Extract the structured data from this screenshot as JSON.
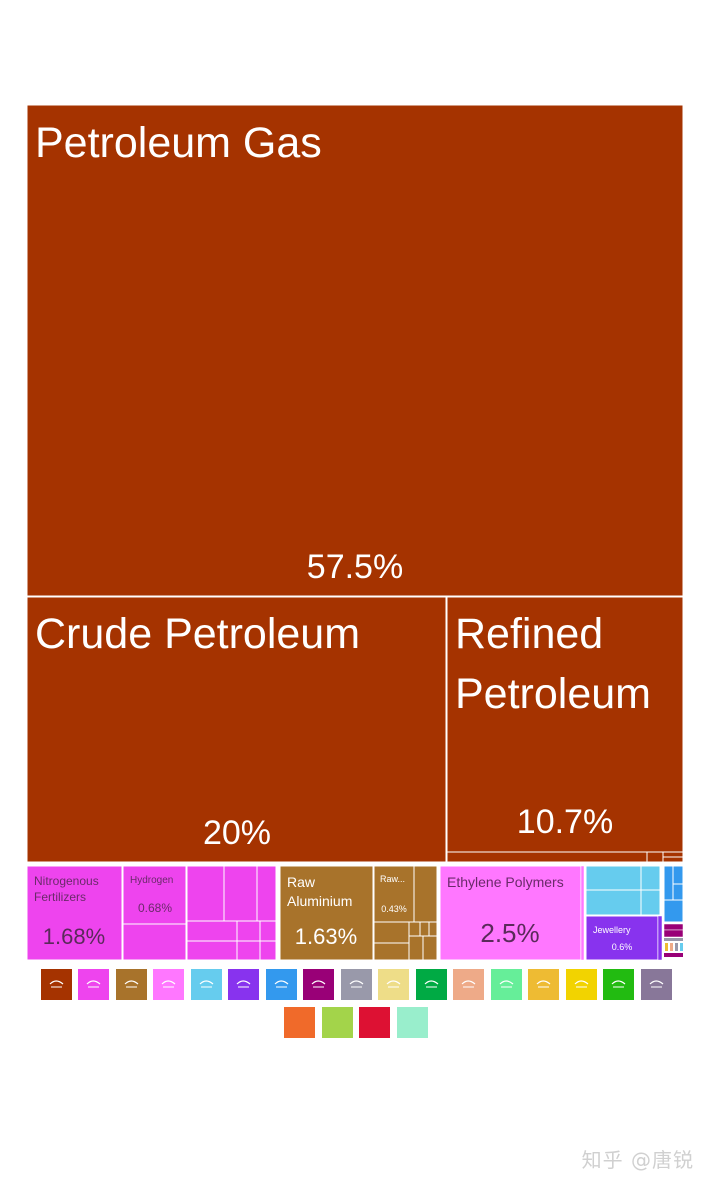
{
  "chart_data": {
    "type": "treemap",
    "title": "",
    "items": [
      {
        "label": "Petroleum Gas",
        "value": 57.5,
        "value_label": "57.5%",
        "color": "#a53300"
      },
      {
        "label": "Crude Petroleum",
        "value": 20,
        "value_label": "20%",
        "color": "#a53300"
      },
      {
        "label": "Refined Petroleum",
        "value": 10.7,
        "value_label": "10.7%",
        "color": "#a53300"
      },
      {
        "label": "Nitrogenous Fertilizers",
        "value": 1.68,
        "value_label": "1.68%",
        "color": "#ee44ee"
      },
      {
        "label": "Hydrogen",
        "value": 0.68,
        "value_label": "0.68%",
        "color": "#ee44ee"
      },
      {
        "label": "Raw Aluminium",
        "value": 1.63,
        "value_label": "1.63%",
        "color": "#a8732b"
      },
      {
        "label": "Raw...",
        "value": 0.43,
        "value_label": "0.43%",
        "color": "#a8732b"
      },
      {
        "label": "Ethylene Polymers",
        "value": 2.5,
        "value_label": "2.5%",
        "color": "#ff77ff"
      },
      {
        "label": "Jewellery",
        "value": 0.6,
        "value_label": "0.6%",
        "color": "#8833ee"
      }
    ]
  },
  "legend": [
    {
      "icon": "oil-derrick-icon",
      "color": "#a53300"
    },
    {
      "icon": "flask-icon",
      "color": "#ee44ee"
    },
    {
      "icon": "ingot-icon",
      "color": "#a8732b"
    },
    {
      "icon": "plastic-icon",
      "color": "#ff77ff"
    },
    {
      "icon": "stone-icon",
      "color": "#66ccee"
    },
    {
      "icon": "gem-icon",
      "color": "#8833ee"
    },
    {
      "icon": "machine-icon",
      "color": "#3399ee"
    },
    {
      "icon": "textile-icon",
      "color": "#990077"
    },
    {
      "icon": "instrument-icon",
      "color": "#9999aa"
    },
    {
      "icon": "vehicle-icon",
      "color": "#eedd88"
    },
    {
      "icon": "animal-icon",
      "color": "#00aa44"
    },
    {
      "icon": "food-icon",
      "color": "#eeaa88"
    },
    {
      "icon": "vegetable-icon",
      "color": "#66ee99"
    },
    {
      "icon": "furniture-icon",
      "color": "#eebb33"
    },
    {
      "icon": "footwear-icon",
      "color": "#f2d300"
    },
    {
      "icon": "paper-icon",
      "color": "#22bb11"
    },
    {
      "icon": "flag-icon",
      "color": "#887799"
    },
    {
      "icon": "weapon-icon",
      "color": "#f06a2a"
    },
    {
      "icon": "plant-icon",
      "color": "#a3d44a"
    },
    {
      "icon": "art-icon",
      "color": "#dd1133"
    },
    {
      "icon": "misc-icon",
      "color": "#99eecc"
    }
  ],
  "watermark": "知乎 @唐锐"
}
